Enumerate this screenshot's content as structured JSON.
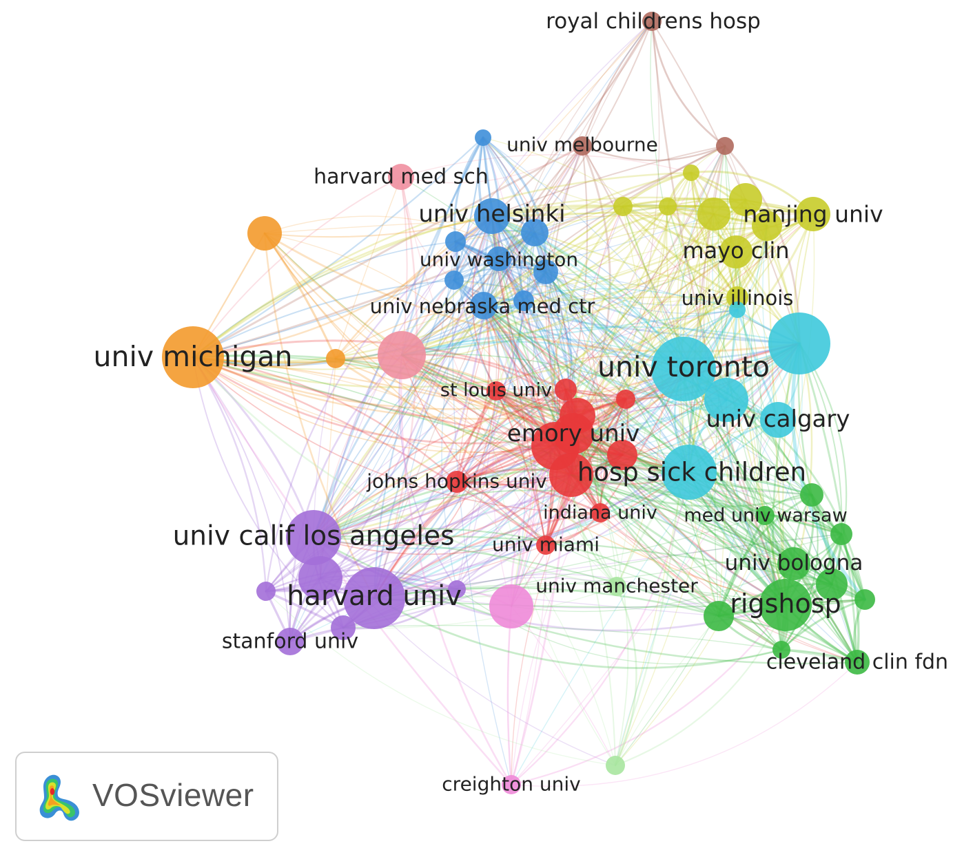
{
  "app": {
    "brand": "VOSviewer"
  },
  "clusters": {
    "red": "#e8393a",
    "blue": "#3f8fd9",
    "yellow": "#c8cc2a",
    "green": "#3cb944",
    "purple": "#a36fd8",
    "cyan": "#3ec9dc",
    "orange": "#f39a2c",
    "brown": "#b06a5e",
    "pink": "#f08fa0",
    "magenta": "#ee8ad8",
    "lightgreen": "#a8e6a0"
  },
  "nodes": [
    {
      "id": "royal-childrens-hosp",
      "label": "royal childrens hosp",
      "cluster": "brown"
    },
    {
      "id": "univ-melbourne",
      "label": "univ melbourne",
      "cluster": "brown"
    },
    {
      "id": "brown-2",
      "label": "",
      "cluster": "brown"
    },
    {
      "id": "harvard-med-sch",
      "label": "harvard med sch",
      "cluster": "pink"
    },
    {
      "id": "pink-2",
      "label": "",
      "cluster": "pink"
    },
    {
      "id": "univ-helsinki",
      "label": "univ helsinki",
      "cluster": "blue"
    },
    {
      "id": "univ-washington",
      "label": "univ washington",
      "cluster": "blue"
    },
    {
      "id": "univ-nebraska-med-ctr",
      "label": "univ nebraska med ctr",
      "cluster": "blue"
    },
    {
      "id": "blue-4",
      "label": "",
      "cluster": "blue"
    },
    {
      "id": "blue-5",
      "label": "",
      "cluster": "blue"
    },
    {
      "id": "blue-6",
      "label": "",
      "cluster": "blue"
    },
    {
      "id": "blue-7",
      "label": "",
      "cluster": "blue"
    },
    {
      "id": "blue-8",
      "label": "",
      "cluster": "blue"
    },
    {
      "id": "blue-9",
      "label": "",
      "cluster": "blue"
    },
    {
      "id": "nanjing-univ",
      "label": "nanjing univ",
      "cluster": "yellow"
    },
    {
      "id": "mayo-clin",
      "label": "mayo clin",
      "cluster": "yellow"
    },
    {
      "id": "univ-illinois",
      "label": "univ illinois",
      "cluster": "yellow"
    },
    {
      "id": "yellow-4",
      "label": "",
      "cluster": "yellow"
    },
    {
      "id": "yellow-5",
      "label": "",
      "cluster": "yellow"
    },
    {
      "id": "yellow-6",
      "label": "",
      "cluster": "yellow"
    },
    {
      "id": "yellow-7",
      "label": "",
      "cluster": "yellow"
    },
    {
      "id": "yellow-8",
      "label": "",
      "cluster": "yellow"
    },
    {
      "id": "yellow-9",
      "label": "",
      "cluster": "yellow"
    },
    {
      "id": "univ-michigan",
      "label": "univ michigan",
      "cluster": "orange"
    },
    {
      "id": "orange-2",
      "label": "",
      "cluster": "orange"
    },
    {
      "id": "orange-3",
      "label": "",
      "cluster": "orange"
    },
    {
      "id": "univ-toronto",
      "label": "univ toronto",
      "cluster": "cyan"
    },
    {
      "id": "univ-calgary",
      "label": "univ calgary",
      "cluster": "cyan"
    },
    {
      "id": "hosp-sick-children",
      "label": "hosp sick children",
      "cluster": "cyan"
    },
    {
      "id": "cyan-4",
      "label": "",
      "cluster": "cyan"
    },
    {
      "id": "cyan-5",
      "label": "",
      "cluster": "cyan"
    },
    {
      "id": "cyan-6",
      "label": "",
      "cluster": "cyan"
    },
    {
      "id": "st-louis-univ",
      "label": "st louis univ",
      "cluster": "red"
    },
    {
      "id": "emory-univ",
      "label": "emory univ",
      "cluster": "red"
    },
    {
      "id": "johns-hopkins-univ",
      "label": "johns hopkins univ",
      "cluster": "red"
    },
    {
      "id": "indiana-univ",
      "label": "indiana univ",
      "cluster": "red"
    },
    {
      "id": "univ-miami",
      "label": "univ miami",
      "cluster": "red"
    },
    {
      "id": "red-6",
      "label": "",
      "cluster": "red"
    },
    {
      "id": "red-7",
      "label": "",
      "cluster": "red"
    },
    {
      "id": "red-8",
      "label": "",
      "cluster": "red"
    },
    {
      "id": "red-9",
      "label": "",
      "cluster": "red"
    },
    {
      "id": "red-10",
      "label": "",
      "cluster": "red"
    },
    {
      "id": "red-11",
      "label": "",
      "cluster": "red"
    },
    {
      "id": "univ-calif-los-angeles",
      "label": "univ calif los angeles",
      "cluster": "purple"
    },
    {
      "id": "harvard-univ",
      "label": "harvard univ",
      "cluster": "purple"
    },
    {
      "id": "stanford-univ",
      "label": "stanford univ",
      "cluster": "purple"
    },
    {
      "id": "purple-4",
      "label": "",
      "cluster": "purple"
    },
    {
      "id": "purple-5",
      "label": "",
      "cluster": "purple"
    },
    {
      "id": "purple-6",
      "label": "",
      "cluster": "purple"
    },
    {
      "id": "purple-7",
      "label": "",
      "cluster": "purple"
    },
    {
      "id": "creighton-univ",
      "label": "creighton univ",
      "cluster": "magenta"
    },
    {
      "id": "magenta-2",
      "label": "",
      "cluster": "magenta"
    },
    {
      "id": "univ-manchester",
      "label": "univ manchester",
      "cluster": "lightgreen"
    },
    {
      "id": "lightgreen-2",
      "label": "",
      "cluster": "lightgreen"
    },
    {
      "id": "med-univ-warsaw",
      "label": "med univ warsaw",
      "cluster": "green"
    },
    {
      "id": "univ-bologna",
      "label": "univ bologna",
      "cluster": "green"
    },
    {
      "id": "rigshosp",
      "label": "rigshosp",
      "cluster": "green"
    },
    {
      "id": "cleveland-clin-fdn",
      "label": "cleveland clin fdn",
      "cluster": "green"
    },
    {
      "id": "green-5",
      "label": "",
      "cluster": "green"
    },
    {
      "id": "green-6",
      "label": "",
      "cluster": "green"
    },
    {
      "id": "green-7",
      "label": "",
      "cluster": "green"
    },
    {
      "id": "green-8",
      "label": "",
      "cluster": "green"
    },
    {
      "id": "green-9",
      "label": "",
      "cluster": "green"
    },
    {
      "id": "green-10",
      "label": "",
      "cluster": "green"
    }
  ]
}
